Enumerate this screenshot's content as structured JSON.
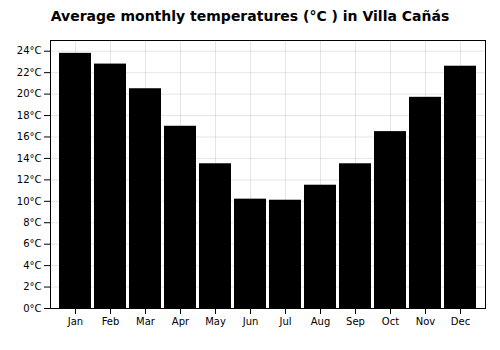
{
  "chart_data": {
    "type": "bar",
    "title": "Average monthly temperatures (°C ) in Villa Cañás",
    "categories": [
      "Jan",
      "Feb",
      "Mar",
      "Apr",
      "May",
      "Jun",
      "Jul",
      "Aug",
      "Sep",
      "Oct",
      "Nov",
      "Dec"
    ],
    "values": [
      23.8,
      22.8,
      20.5,
      17.0,
      13.5,
      10.2,
      10.1,
      11.5,
      13.5,
      16.5,
      19.7,
      22.6
    ],
    "ylim": [
      0,
      25
    ],
    "yticks": [
      {
        "value": 0,
        "label": "0°C"
      },
      {
        "value": 2,
        "label": "2°C"
      },
      {
        "value": 4,
        "label": "4°C"
      },
      {
        "value": 6,
        "label": "6°C"
      },
      {
        "value": 8,
        "label": "8°C"
      },
      {
        "value": 10,
        "label": "10°C"
      },
      {
        "value": 12,
        "label": "12°C"
      },
      {
        "value": 14,
        "label": "14°C"
      },
      {
        "value": 16,
        "label": "16°C"
      },
      {
        "value": 18,
        "label": "18°C"
      },
      {
        "value": 20,
        "label": "20°C"
      },
      {
        "value": 22,
        "label": "22°C"
      },
      {
        "value": 24,
        "label": "24°C"
      }
    ],
    "grid": true
  }
}
